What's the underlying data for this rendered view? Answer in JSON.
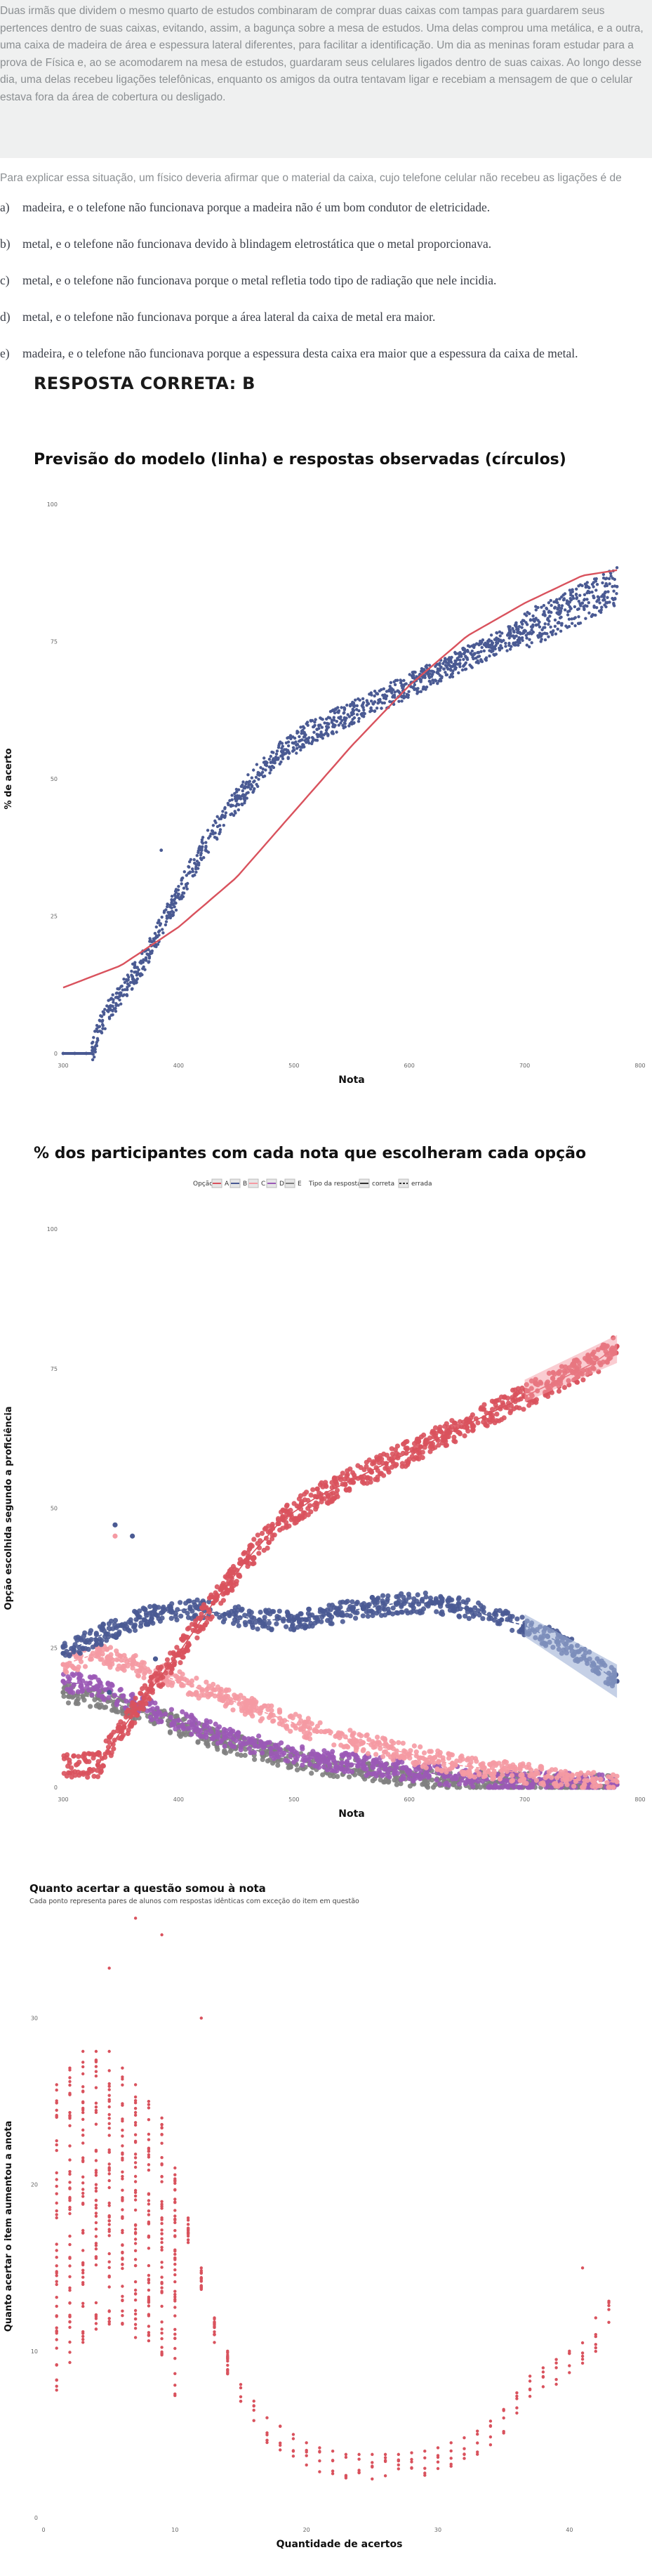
{
  "passage": {
    "text": "Duas irmãs que dividem o mesmo quarto de estudos combinaram de comprar duas caixas com tampas para guardarem seus pertences dentro de suas caixas, evitando, assim, a bagunça sobre a mesa de estudos. Uma delas comprou uma metálica, e a outra, uma caixa de madeira de área e espessura lateral diferentes, para facilitar a identificação. Um dia as meninas foram estudar para a prova de Física e, ao se acomodarem na mesa de estudos, guardaram seus celulares ligados dentro de suas caixas. Ao longo desse dia, uma delas recebeu ligações telefônicas, enquanto os amigos da outra tentavam ligar e recebiam a mensagem de que o celular estava fora da área de cobertura ou desligado."
  },
  "question": "Para explicar essa situação, um físico deveria afirmar que o material da caixa, cujo telefone celular não recebeu as ligações é de",
  "options": [
    {
      "letter": "a)",
      "text": "madeira, e o telefone não funcionava porque a madeira não é um bom condutor de eletricidade."
    },
    {
      "letter": "b)",
      "text": "metal, e o telefone não funcionava devido à blindagem eletrostática que o metal proporcionava."
    },
    {
      "letter": "c)",
      "text": "metal, e o telefone não funcionava porque o metal refletia todo tipo de radiação que nele incidia."
    },
    {
      "letter": "d)",
      "text": "metal, e o telefone não funcionava porque a área lateral da caixa de metal era maior."
    },
    {
      "letter": "e)",
      "text": "madeira, e o telefone não funcionava porque a espessura desta caixa era maior que a espessura da caixa de metal."
    }
  ],
  "answer": "RESPOSTA CORRETA: B",
  "colors": {
    "red": "#d9525d",
    "blue": "#4a5a93",
    "pink": "#f59aa3",
    "purple": "#9b59b6",
    "gray": "#7f7f7f",
    "lightblue": "#9fb1d6"
  },
  "chart_data": [
    {
      "type": "scatter",
      "title": "Previsão do modelo (linha) e respostas observadas (círculos)",
      "xlabel": "Nota",
      "ylabel": "% de acerto",
      "xlim": [
        300,
        800
      ],
      "ylim": [
        0,
        100
      ],
      "xticks": [
        300,
        400,
        500,
        600,
        700,
        800
      ],
      "yticks": [
        0,
        25,
        50,
        75,
        100
      ],
      "series": [
        {
          "kind": "points",
          "color": "blue",
          "x": [
            300,
            310,
            320,
            325,
            330,
            340,
            350,
            360,
            370,
            380,
            390,
            400,
            410,
            420,
            430,
            440,
            450,
            460,
            470,
            480,
            490,
            500,
            510,
            520,
            530,
            540,
            550,
            560,
            570,
            580,
            590,
            600,
            610,
            620,
            630,
            640,
            650,
            660,
            670,
            680,
            690,
            700,
            710,
            720,
            730,
            740,
            750,
            760,
            770,
            780
          ],
          "y": [
            0,
            0,
            0,
            0,
            4,
            8,
            11,
            14,
            17,
            21,
            25,
            29,
            33,
            37,
            40,
            43,
            46,
            48.5,
            51,
            53,
            55,
            56.5,
            58,
            59,
            60,
            61,
            62,
            63,
            64,
            65,
            66,
            67,
            68,
            69,
            70,
            71,
            72,
            73,
            74,
            75,
            76,
            77,
            78,
            79,
            80,
            81,
            82,
            83,
            84,
            85
          ]
        },
        {
          "kind": "line",
          "color": "red",
          "x": [
            300,
            350,
            400,
            450,
            500,
            550,
            600,
            650,
            700,
            750,
            780
          ],
          "y": [
            12,
            16,
            23,
            32,
            44,
            56,
            67,
            76,
            82,
            87,
            88
          ]
        }
      ]
    },
    {
      "type": "scatter",
      "title": "% dos participantes com cada nota que escolheram cada opção",
      "xlabel": "Nota",
      "ylabel": "Opção escolhida segundo a proficiência",
      "legend_option_title": "Opção",
      "legend_type_title": "Tipo da resposta",
      "legend_options": [
        "A",
        "B",
        "C",
        "D",
        "E"
      ],
      "legend_types": [
        "correta",
        "errada"
      ],
      "xlim": [
        300,
        800
      ],
      "ylim": [
        0,
        100
      ],
      "xticks": [
        300,
        400,
        500,
        600,
        700,
        800
      ],
      "yticks": [
        0,
        25,
        50,
        75,
        100
      ],
      "series": [
        {
          "name": "B",
          "color": "red",
          "x": [
            330,
            350,
            370,
            400,
            430,
            460,
            490,
            520,
            550,
            580,
            610,
            640,
            670,
            700,
            730,
            760,
            780
          ],
          "y": [
            4,
            10,
            16,
            24,
            33,
            41,
            48,
            52,
            55,
            58,
            61,
            64,
            67,
            70,
            73,
            76,
            79
          ]
        },
        {
          "name": "A",
          "color": "blue",
          "x": [
            300,
            320,
            350,
            380,
            410,
            440,
            470,
            500,
            530,
            560,
            590,
            620,
            650,
            680,
            700,
            720,
            740,
            760,
            780
          ],
          "y": [
            24,
            26,
            29,
            31,
            32,
            31,
            30,
            30,
            31,
            32,
            33,
            33,
            32,
            30,
            29,
            27,
            25,
            22,
            19
          ]
        },
        {
          "name": "C",
          "color": "pink",
          "x": [
            300,
            330,
            360,
            400,
            440,
            480,
            520,
            560,
            600,
            640,
            680,
            720,
            760,
            780
          ],
          "y": [
            22,
            24,
            22,
            19,
            16,
            13,
            10,
            8,
            6,
            4,
            3,
            2,
            1,
            1
          ]
        },
        {
          "name": "D",
          "color": "purple",
          "x": [
            300,
            330,
            360,
            400,
            440,
            480,
            520,
            560,
            600,
            640,
            680,
            720,
            760,
            780
          ],
          "y": [
            19,
            18,
            15,
            12,
            9,
            7,
            5,
            4,
            3,
            2,
            1,
            1,
            0.5,
            0.5
          ]
        },
        {
          "name": "E",
          "color": "gray",
          "x": [
            300,
            330,
            360,
            400,
            440,
            480,
            520,
            560,
            600,
            640,
            680,
            720,
            760,
            780
          ],
          "y": [
            17,
            16,
            14,
            11,
            8,
            6,
            4,
            3,
            2,
            1,
            1,
            0.5,
            0.5,
            0.5
          ]
        }
      ]
    },
    {
      "type": "scatter",
      "title": "Quanto acertar a questão somou à nota",
      "subtitle": "Cada ponto representa pares de alunos com respostas idênticas com exceção do item em questão",
      "xlabel": "Quantidade de acertos",
      "ylabel": "Quanto acertar o item aumentou a anota",
      "xlim": [
        0,
        45
      ],
      "ylim": [
        0,
        35
      ],
      "xticks": [
        0,
        10,
        20,
        30,
        40
      ],
      "yticks": [
        0,
        10,
        20,
        30
      ],
      "series": [
        {
          "name": "",
          "color": "red",
          "x": [
            1,
            2,
            3,
            4,
            5,
            6,
            7,
            8,
            9,
            10,
            11,
            12,
            13,
            14,
            15,
            16,
            17,
            18,
            19,
            20,
            21,
            22,
            23,
            24,
            25,
            26,
            27,
            28,
            29,
            30,
            31,
            32,
            33,
            34,
            35,
            36,
            37,
            38,
            39,
            40,
            41,
            42,
            43
          ],
          "y": [
            26,
            27,
            28,
            28,
            28,
            27,
            26,
            25,
            24,
            21,
            18,
            15,
            12,
            10,
            8,
            7,
            6,
            5.5,
            5,
            4.5,
            4.2,
            4.0,
            3.8,
            3.8,
            3.8,
            3.8,
            3.8,
            3.9,
            4.0,
            4.2,
            4.5,
            4.8,
            5.2,
            5.8,
            6.5,
            7.5,
            8.5,
            9.0,
            9.5,
            10.0,
            10.5,
            11,
            13
          ]
        }
      ]
    }
  ]
}
